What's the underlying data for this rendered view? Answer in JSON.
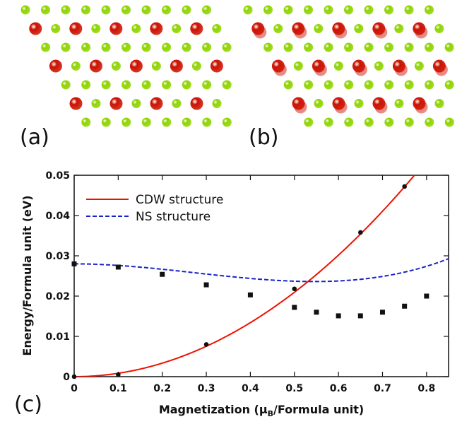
{
  "panels": {
    "a_label": "(a)",
    "b_label": "(b)",
    "c_label": "(c)"
  },
  "atom_colors": {
    "red": "#cc1100",
    "green": "#8fd400"
  },
  "chart_data": {
    "type": "line",
    "xlabel": "Magnetization (μB/Formula unit)",
    "xlabel_main": "Magnetization (μ",
    "xlabel_sub": "B",
    "xlabel_tail": "/Formula unit)",
    "ylabel": "Energy/Formula unit (eV)",
    "xlim": [
      0,
      0.85
    ],
    "ylim": [
      0,
      0.05
    ],
    "xticks": [
      0,
      0.1,
      0.2,
      0.3,
      0.4,
      0.5,
      0.6,
      0.7,
      0.8
    ],
    "xtick_labels": [
      "0",
      "0.1",
      "0.2",
      "0.3",
      "0.4",
      "0.5",
      "0.6",
      "0.7",
      "0.8"
    ],
    "yticks": [
      0,
      0.01,
      0.02,
      0.03,
      0.04,
      0.05
    ],
    "ytick_labels": [
      "0",
      "0.01",
      "0.02",
      "0.03",
      "0.04",
      "0.05"
    ],
    "legend_position": "top-left",
    "series": [
      {
        "name": "CDW structure",
        "color": "#ee1100",
        "style": "solid",
        "marker": "circle",
        "x": [
          0,
          0.1,
          0.3,
          0.5,
          0.65,
          0.75
        ],
        "y": [
          0,
          0.0005,
          0.008,
          0.0218,
          0.0358,
          0.0472
        ],
        "fit": [
          0,
          0,
          0.0838
        ]
      },
      {
        "name": "NS structure",
        "color": "#1a22cc",
        "style": "dashed",
        "marker": "square",
        "x": [
          0,
          0.1,
          0.2,
          0.3,
          0.4,
          0.5,
          0.55,
          0.6,
          0.65,
          0.7,
          0.75,
          0.8
        ],
        "y": [
          0.028,
          0.0272,
          0.0254,
          0.0228,
          0.0203,
          0.0172,
          0.016,
          0.0151,
          0.0151,
          0.016,
          0.0175,
          0.02
        ],
        "fit": [
          0.028,
          0,
          -0.0443,
          0.0542
        ]
      }
    ]
  }
}
